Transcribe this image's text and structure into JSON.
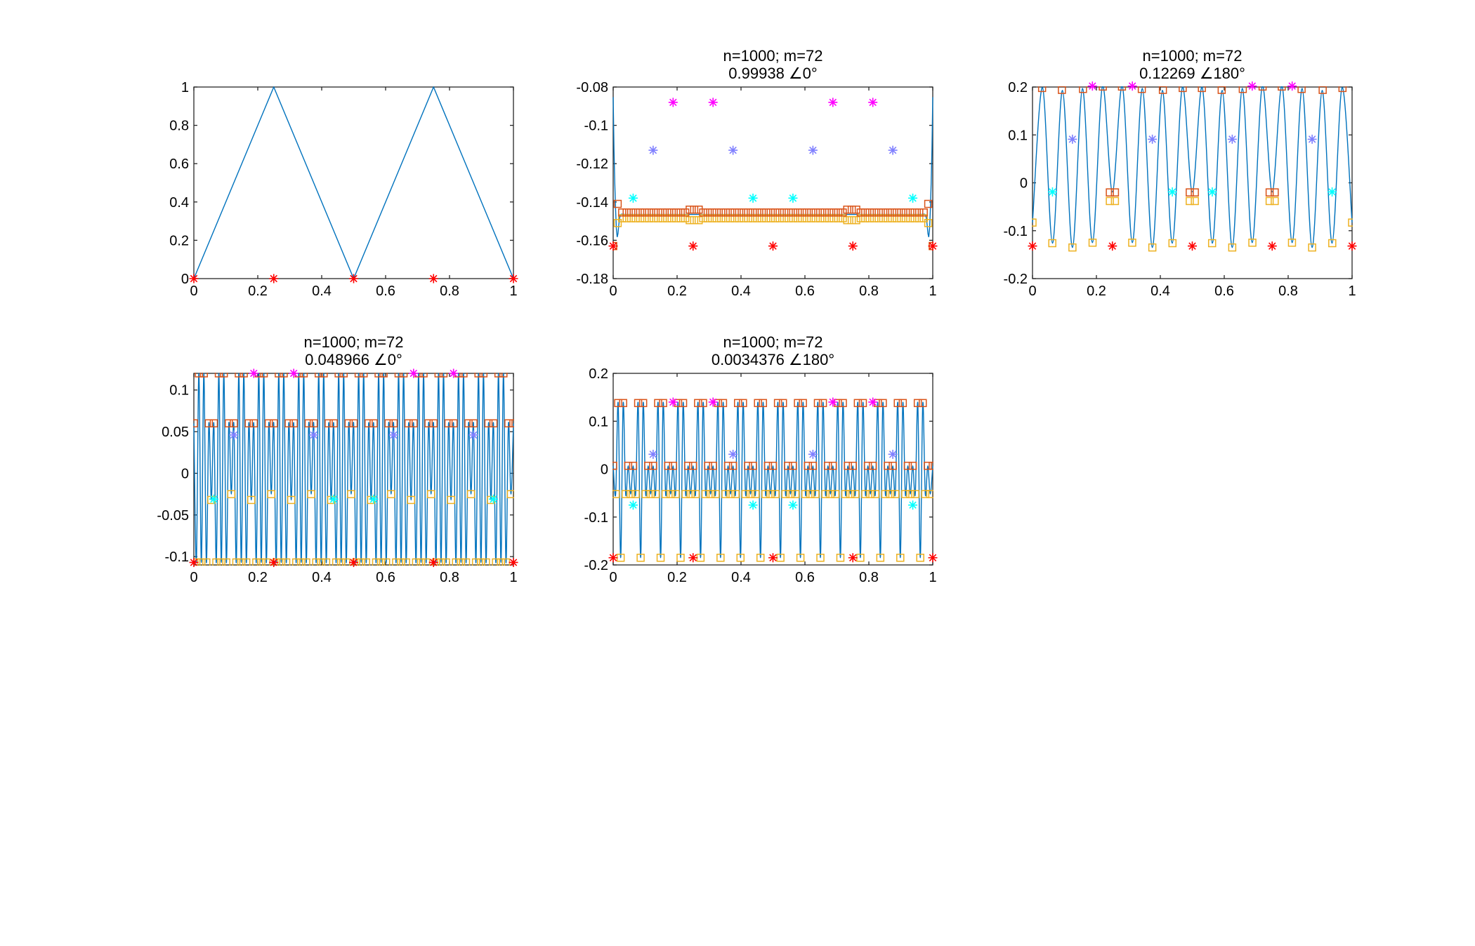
{
  "figure": {
    "background": "#ffffff",
    "colors": {
      "curve": "#0072BD",
      "square_upper": "#D95319",
      "square_lower": "#EDB120",
      "star_red": "#FF0000",
      "star_magenta": "#FF00FF",
      "star_cyan": "#00FFFF",
      "star_blue": "#8080FF"
    }
  },
  "chart_data": [
    {
      "type": "line",
      "title": [],
      "xlim": [
        0,
        1
      ],
      "ylim": [
        0,
        1
      ],
      "xticks": [
        0,
        0.2,
        0.4,
        0.6,
        0.8,
        1
      ],
      "yticks": [
        0,
        0.2,
        0.4,
        0.6,
        0.8,
        1
      ],
      "xtick_labels": [
        "0",
        "0.2",
        "0.4",
        "0.6",
        "0.8",
        "1"
      ],
      "ytick_labels": [
        "0",
        "0.2",
        "0.4",
        "0.6",
        "0.8",
        "1"
      ],
      "grid": false,
      "curve": {
        "kind": "triangle",
        "x": [
          0,
          0.25,
          0.5,
          0.75,
          1
        ],
        "y": [
          0,
          1,
          0,
          1,
          0
        ]
      },
      "markers": [
        {
          "style": "star",
          "color": "star_red",
          "x": [
            0,
            0.25,
            0.5,
            0.75,
            1
          ],
          "y": [
            0,
            0,
            0,
            0,
            0
          ]
        }
      ]
    },
    {
      "type": "line",
      "title": [
        "n=1000; m=72",
        "0.99938 ∠0°"
      ],
      "xlim": [
        0,
        1
      ],
      "ylim": [
        -0.18,
        -0.08
      ],
      "xticks": [
        0,
        0.2,
        0.4,
        0.6,
        0.8,
        1
      ],
      "yticks": [
        -0.18,
        -0.16,
        -0.14,
        -0.12,
        -0.1,
        -0.08
      ],
      "xtick_labels": [
        "0",
        "0.2",
        "0.4",
        "0.6",
        "0.8",
        "1"
      ],
      "ytick_labels": [
        "-0.18",
        "-0.16",
        "-0.14",
        "-0.12",
        "-0.1",
        "-0.08"
      ],
      "grid": false,
      "curve": {
        "kind": "mode0",
        "flat": -0.1465,
        "edge": -0.085,
        "dip": -0.164
      },
      "squares_upper": {
        "count": 72,
        "interior": -0.1455,
        "bump": -0.144,
        "bump_at": [
          0.25,
          0.75
        ],
        "ends": [
          -0.163,
          -0.141
        ]
      },
      "squares_lower": {
        "count": 72,
        "interior": -0.1485,
        "dip": -0.1495,
        "dip_at": [
          0.25,
          0.75
        ],
        "ends": [
          -0.163,
          -0.151
        ]
      },
      "markers": [
        {
          "style": "star",
          "color": "star_red",
          "x": [
            0,
            0.25,
            0.5,
            0.75,
            1
          ],
          "y": [
            -0.163,
            -0.163,
            -0.163,
            -0.163,
            -0.163
          ]
        },
        {
          "style": "star",
          "color": "star_magenta",
          "x": [
            0.1875,
            0.3125,
            0.6875,
            0.8125
          ],
          "y": [
            -0.088,
            -0.088,
            -0.088,
            -0.088
          ]
        },
        {
          "style": "star",
          "color": "star_blue",
          "x": [
            0.125,
            0.375,
            0.625,
            0.875
          ],
          "y": [
            -0.113,
            -0.113,
            -0.113,
            -0.113
          ]
        },
        {
          "style": "star",
          "color": "star_cyan",
          "x": [
            0.0625,
            0.4375,
            0.5625,
            0.9375
          ],
          "y": [
            -0.138,
            -0.138,
            -0.138,
            -0.138
          ]
        }
      ]
    },
    {
      "type": "line",
      "title": [
        "n=1000; m=72",
        "0.12269 ∠180°"
      ],
      "xlim": [
        0,
        1
      ],
      "ylim": [
        -0.2,
        0.2
      ],
      "xticks": [
        0,
        0.2,
        0.4,
        0.6,
        0.8,
        1
      ],
      "yticks": [
        -0.2,
        -0.1,
        0,
        0.1,
        0.2
      ],
      "xtick_labels": [
        "0",
        "0.2",
        "0.4",
        "0.6",
        "0.8",
        "1"
      ],
      "ytick_labels": [
        "-0.2",
        "-0.1",
        "0",
        "0.1",
        "0.2"
      ],
      "grid": false,
      "curve": {
        "kind": "knots",
        "knots": [
          [
            0,
            -0.083
          ],
          [
            0.0313,
            0.199
          ],
          [
            0.0625,
            -0.126
          ],
          [
            0.0938,
            0.193
          ],
          [
            0.125,
            -0.135
          ],
          [
            0.1563,
            0.197
          ],
          [
            0.1875,
            -0.125
          ],
          [
            0.2188,
            0.201
          ],
          [
            0.25,
            -0.019
          ],
          [
            0.2813,
            0.201
          ],
          [
            0.3125,
            -0.125
          ],
          [
            0.3438,
            0.197
          ],
          [
            0.375,
            -0.135
          ],
          [
            0.4063,
            0.193
          ],
          [
            0.4375,
            -0.126
          ],
          [
            0.4688,
            0.199
          ],
          [
            0.5,
            -0.019
          ],
          [
            0.5313,
            0.199
          ],
          [
            0.5625,
            -0.126
          ],
          [
            0.5938,
            0.193
          ],
          [
            0.625,
            -0.135
          ],
          [
            0.6563,
            0.197
          ],
          [
            0.6875,
            -0.125
          ],
          [
            0.7188,
            0.201
          ],
          [
            0.75,
            -0.019
          ],
          [
            0.7813,
            0.201
          ],
          [
            0.8125,
            -0.125
          ],
          [
            0.8438,
            0.197
          ],
          [
            0.875,
            -0.135
          ],
          [
            0.9063,
            0.193
          ],
          [
            0.9375,
            -0.126
          ],
          [
            0.9688,
            0.199
          ],
          [
            1,
            -0.083
          ]
        ]
      },
      "squares_upper": {
        "x": [
          0.03,
          0.092,
          0.158,
          0.22,
          0.242,
          0.258,
          0.28,
          0.342,
          0.408,
          0.47,
          0.492,
          0.508,
          0.53,
          0.592,
          0.658,
          0.72,
          0.742,
          0.758,
          0.78,
          0.842,
          0.908,
          0.97
        ],
        "y": [
          0.198,
          0.194,
          0.196,
          0.201,
          -0.02,
          -0.02,
          0.201,
          0.196,
          0.194,
          0.198,
          -0.02,
          -0.02,
          0.198,
          0.194,
          0.196,
          0.201,
          -0.02,
          -0.02,
          0.201,
          0.196,
          0.194,
          0.198
        ]
      },
      "squares_lower": {
        "x": [
          0,
          0.062,
          0.125,
          0.188,
          0.242,
          0.258,
          0.312,
          0.375,
          0.438,
          0.492,
          0.508,
          0.562,
          0.625,
          0.688,
          0.742,
          0.758,
          0.812,
          0.875,
          0.938,
          1
        ],
        "y": [
          -0.083,
          -0.126,
          -0.135,
          -0.125,
          -0.038,
          -0.038,
          -0.125,
          -0.135,
          -0.126,
          -0.038,
          -0.038,
          -0.126,
          -0.135,
          -0.125,
          -0.038,
          -0.038,
          -0.125,
          -0.135,
          -0.126,
          -0.083
        ]
      },
      "markers": [
        {
          "style": "star",
          "color": "star_red",
          "x": [
            0,
            0.25,
            0.5,
            0.75,
            1
          ],
          "y": [
            -0.132,
            -0.132,
            -0.132,
            -0.132,
            -0.132
          ]
        },
        {
          "style": "star",
          "color": "star_magenta",
          "x": [
            0.1875,
            0.3125,
            0.6875,
            0.8125
          ],
          "y": [
            0.202,
            0.202,
            0.202,
            0.202
          ]
        },
        {
          "style": "star",
          "color": "star_blue",
          "x": [
            0.125,
            0.375,
            0.625,
            0.875
          ],
          "y": [
            0.091,
            0.091,
            0.091,
            0.091
          ]
        },
        {
          "style": "star",
          "color": "star_cyan",
          "x": [
            0.0625,
            0.4375,
            0.5625,
            0.9375
          ],
          "y": [
            -0.019,
            -0.019,
            -0.019,
            -0.019
          ]
        }
      ]
    },
    {
      "type": "line",
      "title": [
        "n=1000; m=72",
        "0.048966 ∠0°"
      ],
      "xlim": [
        0,
        1
      ],
      "ylim": [
        -0.11,
        0.12
      ],
      "xticks": [
        0,
        0.2,
        0.4,
        0.6,
        0.8,
        1
      ],
      "yticks": [
        -0.1,
        -0.05,
        0,
        0.05,
        0.1
      ],
      "xtick_labels": [
        "0",
        "0.2",
        "0.4",
        "0.6",
        "0.8",
        "1"
      ],
      "ytick_labels": [
        "-0.1",
        "-0.05",
        "0",
        "0.05",
        "0.1"
      ],
      "grid": false,
      "curve": {
        "kind": "tiled",
        "period": 0.125,
        "pattern": [
          0.06,
          -0.107,
          0.12,
          -0.107,
          0.12,
          -0.107,
          0.06,
          -0.032,
          0.06,
          -0.107,
          0.12,
          -0.107,
          0.12,
          -0.107,
          0.06,
          -0.025
        ]
      },
      "squares_upper": {
        "kind": "tiled_peaks",
        "levels": [
          0.06,
          0.12,
          0.12,
          0.06,
          0.06,
          0.12,
          0.12,
          0.06
        ]
      },
      "squares_lower": {
        "kind": "tiled_troughs",
        "levels": [
          -0.107,
          -0.107,
          -0.107,
          -0.032,
          -0.107,
          -0.107,
          -0.107,
          -0.025
        ]
      },
      "markers": [
        {
          "style": "star",
          "color": "star_red",
          "x": [
            0,
            0.25,
            0.5,
            0.75,
            1
          ],
          "y": [
            -0.107,
            -0.107,
            -0.107,
            -0.107,
            -0.107
          ]
        },
        {
          "style": "star",
          "color": "star_magenta",
          "x": [
            0.1875,
            0.3125,
            0.6875,
            0.8125
          ],
          "y": [
            0.12,
            0.12,
            0.12,
            0.12
          ]
        },
        {
          "style": "star",
          "color": "star_blue",
          "x": [
            0.125,
            0.375,
            0.625,
            0.875
          ],
          "y": [
            0.046,
            0.046,
            0.046,
            0.046
          ]
        },
        {
          "style": "star",
          "color": "star_cyan",
          "x": [
            0.0625,
            0.4375,
            0.5625,
            0.9375
          ],
          "y": [
            -0.031,
            -0.031,
            -0.031,
            -0.031
          ]
        }
      ]
    },
    {
      "type": "line",
      "title": [
        "n=1000; m=72",
        "0.0034376 ∠180°"
      ],
      "xlim": [
        0,
        1
      ],
      "ylim": [
        -0.2,
        0.2
      ],
      "xticks": [
        0,
        0.2,
        0.4,
        0.6,
        0.8,
        1
      ],
      "yticks": [
        -0.2,
        -0.1,
        0,
        0.1,
        0.2
      ],
      "xtick_labels": [
        "0",
        "0.2",
        "0.4",
        "0.6",
        "0.8",
        "1"
      ],
      "ytick_labels": [
        "-0.2",
        "-0.1",
        "0",
        "0.1",
        "0.2"
      ],
      "grid": false,
      "curve": {
        "kind": "tiled",
        "period": 0.125,
        "pattern": [
          0.007,
          -0.052,
          0.138,
          -0.185,
          0.138,
          -0.052,
          0.007,
          -0.052,
          0.007,
          -0.052,
          0.138,
          -0.185,
          0.138,
          -0.052,
          0.007,
          -0.052
        ]
      },
      "squares_upper": {
        "kind": "tiled_peaks",
        "levels": [
          0.007,
          0.138,
          0.138,
          0.007,
          0.007,
          0.138,
          0.138,
          0.007
        ]
      },
      "squares_lower": {
        "kind": "tiled_troughs",
        "levels": [
          -0.052,
          -0.185,
          -0.052,
          -0.052,
          -0.052,
          -0.185,
          -0.052,
          -0.052
        ]
      },
      "markers": [
        {
          "style": "star",
          "color": "star_red",
          "x": [
            0,
            0.25,
            0.5,
            0.75,
            1
          ],
          "y": [
            -0.185,
            -0.185,
            -0.185,
            -0.185,
            -0.185
          ]
        },
        {
          "style": "star",
          "color": "star_magenta",
          "x": [
            0.1875,
            0.3125,
            0.6875,
            0.8125
          ],
          "y": [
            0.14,
            0.14,
            0.14,
            0.14
          ]
        },
        {
          "style": "star",
          "color": "star_blue",
          "x": [
            0.125,
            0.375,
            0.625,
            0.875
          ],
          "y": [
            0.031,
            0.031,
            0.031,
            0.031
          ]
        },
        {
          "style": "star",
          "color": "star_cyan",
          "x": [
            0.0625,
            0.4375,
            0.5625,
            0.9375
          ],
          "y": [
            -0.075,
            -0.075,
            -0.075,
            -0.075
          ]
        }
      ]
    }
  ]
}
